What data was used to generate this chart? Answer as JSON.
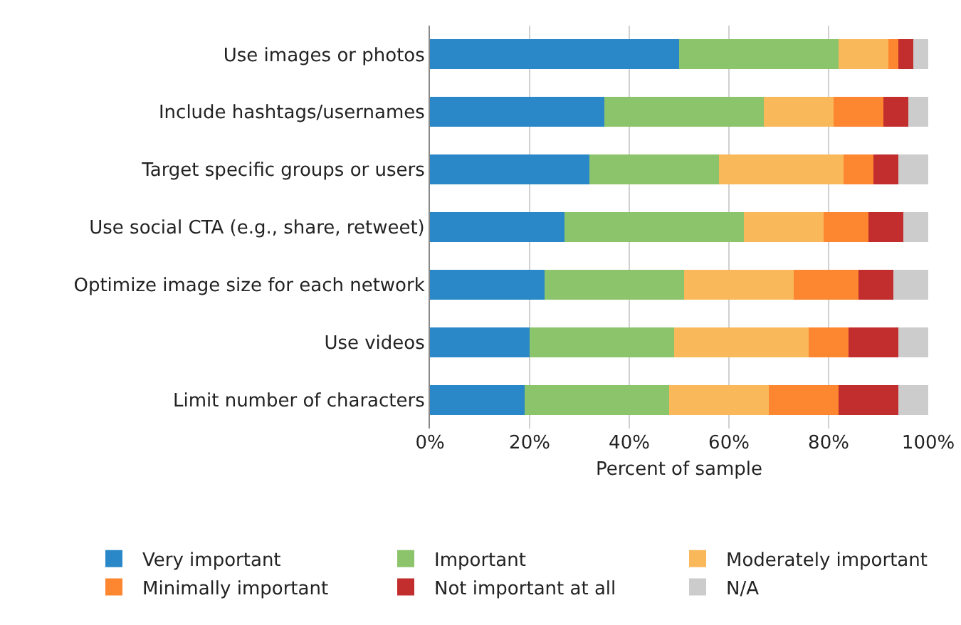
{
  "chart_data": {
    "type": "bar",
    "orientation": "horizontal",
    "stacked": true,
    "categories": [
      "Use images or photos",
      "Include hashtags/usernames",
      "Target specific groups or users",
      "Use social CTA (e.g., share, retweet)",
      "Optimize image size for each network",
      "Use videos",
      "Limit number of characters"
    ],
    "series": [
      {
        "name": "Very important",
        "color": "#2a87c8",
        "values": [
          50,
          35,
          32,
          27,
          23,
          20,
          19
        ]
      },
      {
        "name": "Important",
        "color": "#8cc46c",
        "values": [
          32,
          32,
          26,
          36,
          28,
          29,
          29
        ]
      },
      {
        "name": "Moderately important",
        "color": "#f9b95a",
        "values": [
          10,
          14,
          25,
          16,
          22,
          27,
          20
        ]
      },
      {
        "name": "Minimally important",
        "color": "#fd8631",
        "values": [
          2,
          10,
          6,
          9,
          13,
          8,
          14
        ]
      },
      {
        "name": "Not important at all",
        "color": "#c22e2e",
        "values": [
          3,
          5,
          5,
          7,
          7,
          10,
          12
        ]
      },
      {
        "name": "N/A",
        "color": "#cccccc",
        "values": [
          3,
          4,
          6,
          5,
          7,
          6,
          6
        ]
      }
    ],
    "xlabel": "Percent of sample",
    "xlim": [
      0,
      100
    ],
    "xticks": [
      {
        "value": 0,
        "label": "0%"
      },
      {
        "value": 20,
        "label": "20%"
      },
      {
        "value": 40,
        "label": "40%"
      },
      {
        "value": 60,
        "label": "60%"
      },
      {
        "value": 80,
        "label": "80%"
      },
      {
        "value": 100,
        "label": "100%"
      }
    ],
    "grid": "x",
    "legend": "bottom"
  }
}
